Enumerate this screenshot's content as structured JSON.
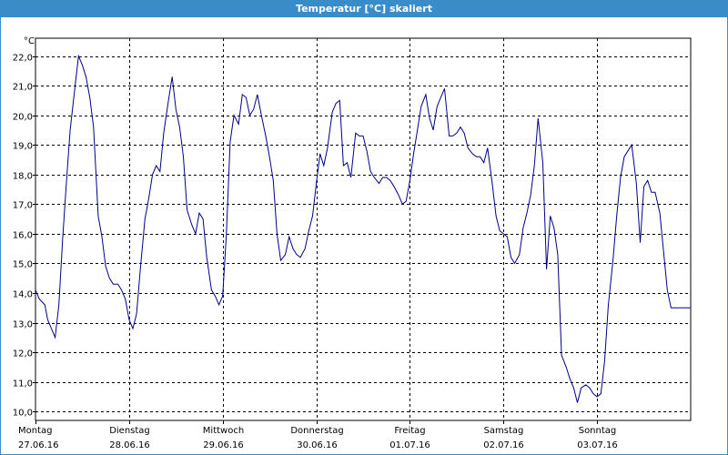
{
  "window": {
    "title": "Temperatur [°C] skaliert",
    "accent_color": "#3a8cc8"
  },
  "chart_data": {
    "type": "line",
    "title": "Temperatur [°C] skaliert",
    "ylabel": "°C",
    "xlabel": "",
    "ylim": [
      9.7,
      22.6
    ],
    "yticks": [
      "10,0",
      "11,0",
      "12,0",
      "13,0",
      "14,0",
      "15,0",
      "16,0",
      "17,0",
      "18,0",
      "19,0",
      "20,0",
      "21,0",
      "22,0"
    ],
    "xticks": [
      {
        "day": "Montag",
        "date": "27.06.16"
      },
      {
        "day": "Dienstag",
        "date": "28.06.16"
      },
      {
        "day": "Mittwoch",
        "date": "29.06.16"
      },
      {
        "day": "Donnerstag",
        "date": "30.06.16"
      },
      {
        "day": "Freitag",
        "date": "01.07.16"
      },
      {
        "day": "Samstag",
        "date": "02.07.16"
      },
      {
        "day": "Sonntag",
        "date": "03.07.16"
      }
    ],
    "grid": true,
    "line_color": "#00008b",
    "series": [
      {
        "x": [
          0,
          0.04,
          0.1,
          0.13,
          0.17,
          0.21,
          0.25,
          0.29,
          0.33,
          0.37,
          0.42,
          0.46,
          0.5,
          0.54,
          0.58,
          0.62,
          0.67,
          0.71,
          0.75,
          0.79,
          0.83,
          0.88,
          0.92,
          0.96,
          1.0,
          1.04,
          1.08,
          1.12,
          1.17,
          1.21,
          1.25,
          1.29,
          1.33,
          1.37,
          1.42,
          1.46,
          1.5,
          1.54,
          1.58,
          1.62,
          1.67,
          1.71,
          1.75,
          1.79,
          1.83,
          1.88,
          1.92,
          1.96,
          2.0,
          2.04,
          2.08,
          2.12,
          2.17,
          2.21,
          2.25,
          2.29,
          2.33,
          2.37,
          2.42,
          2.46,
          2.5,
          2.54,
          2.58,
          2.62,
          2.67,
          2.71,
          2.75,
          2.79,
          2.83,
          2.88,
          2.92,
          2.96,
          3.0,
          3.04,
          3.08,
          3.12,
          3.17,
          3.21,
          3.25,
          3.29,
          3.33,
          3.37,
          3.42,
          3.46,
          3.5,
          3.54,
          3.58,
          3.62,
          3.67,
          3.71,
          3.75,
          3.79,
          3.83,
          3.88,
          3.92,
          3.96,
          4.0,
          4.04,
          4.08,
          4.12,
          4.17,
          4.21,
          4.25,
          4.29,
          4.33,
          4.37,
          4.42,
          4.46,
          4.5,
          4.54,
          4.58,
          4.62,
          4.67,
          4.71,
          4.75,
          4.79,
          4.83,
          4.88,
          4.92,
          4.96,
          5.0,
          5.04,
          5.08,
          5.12,
          5.17,
          5.21,
          5.25,
          5.29,
          5.33,
          5.37,
          5.42,
          5.46,
          5.5,
          5.54,
          5.58,
          5.62,
          5.67,
          5.71,
          5.75,
          5.79,
          5.83,
          5.88,
          5.92,
          5.96,
          6.0,
          6.04,
          6.08,
          6.12,
          6.17,
          6.21,
          6.25,
          6.29,
          6.33,
          6.37,
          6.42,
          6.46,
          6.5,
          6.54,
          6.58,
          6.62,
          6.67,
          6.71,
          6.75,
          6.79,
          6.83,
          6.88,
          6.92,
          6.96,
          7.0
        ],
        "y": [
          14.1,
          13.8,
          13.6,
          13.1,
          12.8,
          12.5,
          13.6,
          15.8,
          17.7,
          19.5,
          20.9,
          22.0,
          21.7,
          21.3,
          20.6,
          19.6,
          16.6,
          15.9,
          14.9,
          14.5,
          14.3,
          14.3,
          14.1,
          13.8,
          13.1,
          12.8,
          13.3,
          14.8,
          16.5,
          17.2,
          18.0,
          18.3,
          18.1,
          19.4,
          20.5,
          21.3,
          20.2,
          19.6,
          18.6,
          16.8,
          16.3,
          16.0,
          16.7,
          16.5,
          15.2,
          14.1,
          13.9,
          13.6,
          13.9,
          16.0,
          19.1,
          20.0,
          19.7,
          20.7,
          20.6,
          20.0,
          20.2,
          20.7,
          19.9,
          19.3,
          18.6,
          17.8,
          16.0,
          15.1,
          15.3,
          15.9,
          15.5,
          15.3,
          15.2,
          15.5,
          16.1,
          16.6,
          17.7,
          18.7,
          18.3,
          18.9,
          20.1,
          20.4,
          20.5,
          18.3,
          18.4,
          17.9,
          19.4,
          19.3,
          19.3,
          18.8,
          18.1,
          17.9,
          17.7,
          17.9,
          17.9,
          17.8,
          17.6,
          17.3,
          17.0,
          17.1,
          17.8,
          18.7,
          19.5,
          20.3,
          20.7,
          19.9,
          19.5,
          20.3,
          20.6,
          20.9,
          19.3,
          19.3,
          19.4,
          19.6,
          19.4,
          18.9,
          18.7,
          18.6,
          18.6,
          18.4,
          18.9,
          17.7,
          16.6,
          16.1,
          16.0,
          15.9,
          15.2,
          15.0,
          15.3,
          16.2,
          16.7,
          17.3,
          18.3,
          19.9,
          18.4,
          14.8,
          16.6,
          16.2,
          15.3,
          11.9,
          11.5,
          11.1,
          10.8,
          10.3,
          10.8,
          10.9,
          10.8,
          10.6,
          10.5,
          10.6,
          11.7,
          13.6,
          15.1,
          16.6,
          17.9,
          18.6,
          18.8,
          19.0,
          17.7,
          15.7,
          17.6,
          17.8,
          17.4,
          17.4,
          16.7,
          15.4,
          14.1,
          13.5,
          13.5,
          13.5,
          13.5,
          13.5,
          13.5
        ]
      }
    ]
  }
}
